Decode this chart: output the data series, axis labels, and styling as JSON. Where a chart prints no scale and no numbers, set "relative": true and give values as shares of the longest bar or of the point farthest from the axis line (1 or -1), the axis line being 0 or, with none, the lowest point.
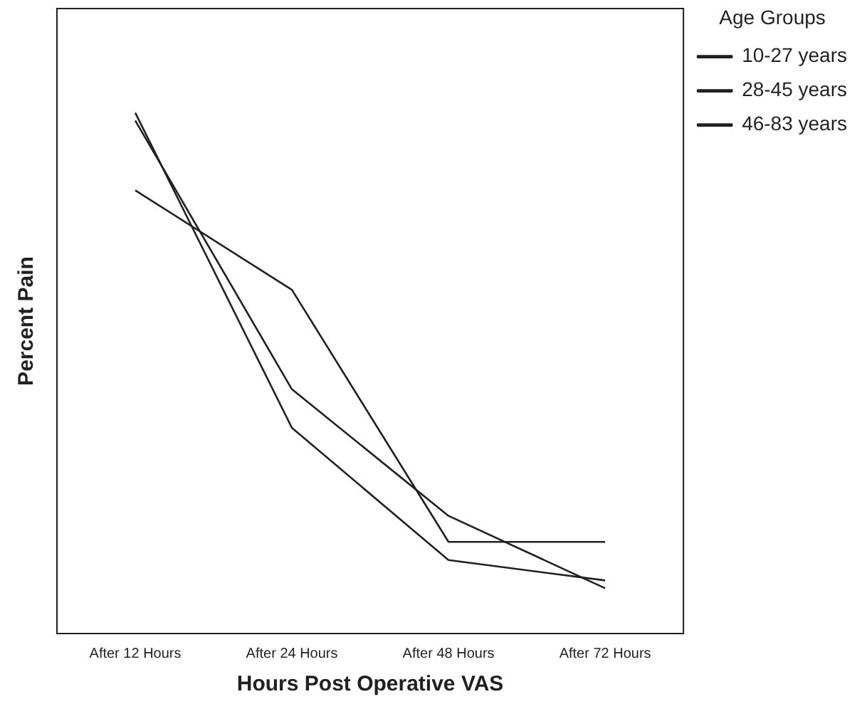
{
  "chart_data": {
    "type": "line",
    "relative": true,
    "xlabel": "Hours Post Operative VAS",
    "ylabel": "Percent Pain",
    "legend_title": "Age Groups",
    "legend": "top right",
    "grid": false,
    "marker": "none",
    "line_style": "solid",
    "categories": [
      "After 12 Hours",
      "After 24 Hours",
      "After 48 Hours",
      "After 72 Hours"
    ],
    "series": [
      {
        "name": "10-27 years",
        "color": "#231f20",
        "values": [
          1,
          0.395,
          0.141,
          0.102
        ]
      },
      {
        "name": "28-45 years",
        "color": "#231f20",
        "values": [
          0.985,
          0.469,
          0.226,
          0.087
        ]
      },
      {
        "name": "46-83 years",
        "color": "#231f20",
        "values": [
          0.851,
          0.66,
          0.176,
          0.176
        ]
      }
    ]
  }
}
